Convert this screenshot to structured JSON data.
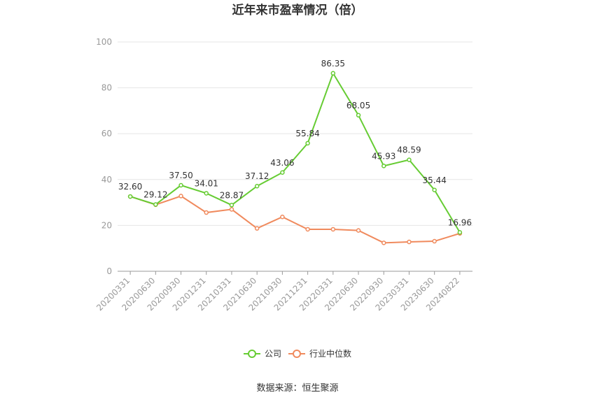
{
  "chart_data": {
    "type": "line",
    "title": "近年来市盈率情况（倍）",
    "categories": [
      "20200331",
      "20200630",
      "20200930",
      "20201231",
      "20210331",
      "20210630",
      "20210930",
      "20211231",
      "20220331",
      "20220630",
      "20220930",
      "20230331",
      "20230630",
      "20240822"
    ],
    "ylim": [
      0,
      100
    ],
    "yticks": [
      0,
      20,
      40,
      60,
      80,
      100
    ],
    "grid": true,
    "legend_position": "bottom",
    "series": [
      {
        "name": "公司",
        "color": "#66cc33",
        "values": [
          32.6,
          29.12,
          37.5,
          34.01,
          28.87,
          37.12,
          43.06,
          55.84,
          86.35,
          68.05,
          45.93,
          48.59,
          35.44,
          16.96
        ],
        "labels": [
          "32.60",
          "29.12",
          "37.50",
          "34.01",
          "28.87",
          "37.12",
          "43.06",
          "55.84",
          "86.35",
          "68.05",
          "45.93",
          "48.59",
          "35.44",
          "16.96"
        ]
      },
      {
        "name": "行业中位数",
        "color": "#f08a5d",
        "values": [
          32.6,
          29.0,
          32.8,
          25.6,
          27.0,
          18.7,
          23.7,
          18.3,
          18.3,
          17.8,
          12.4,
          12.8,
          13.1,
          16.5
        ]
      }
    ],
    "source": "数据来源：恒生聚源"
  }
}
